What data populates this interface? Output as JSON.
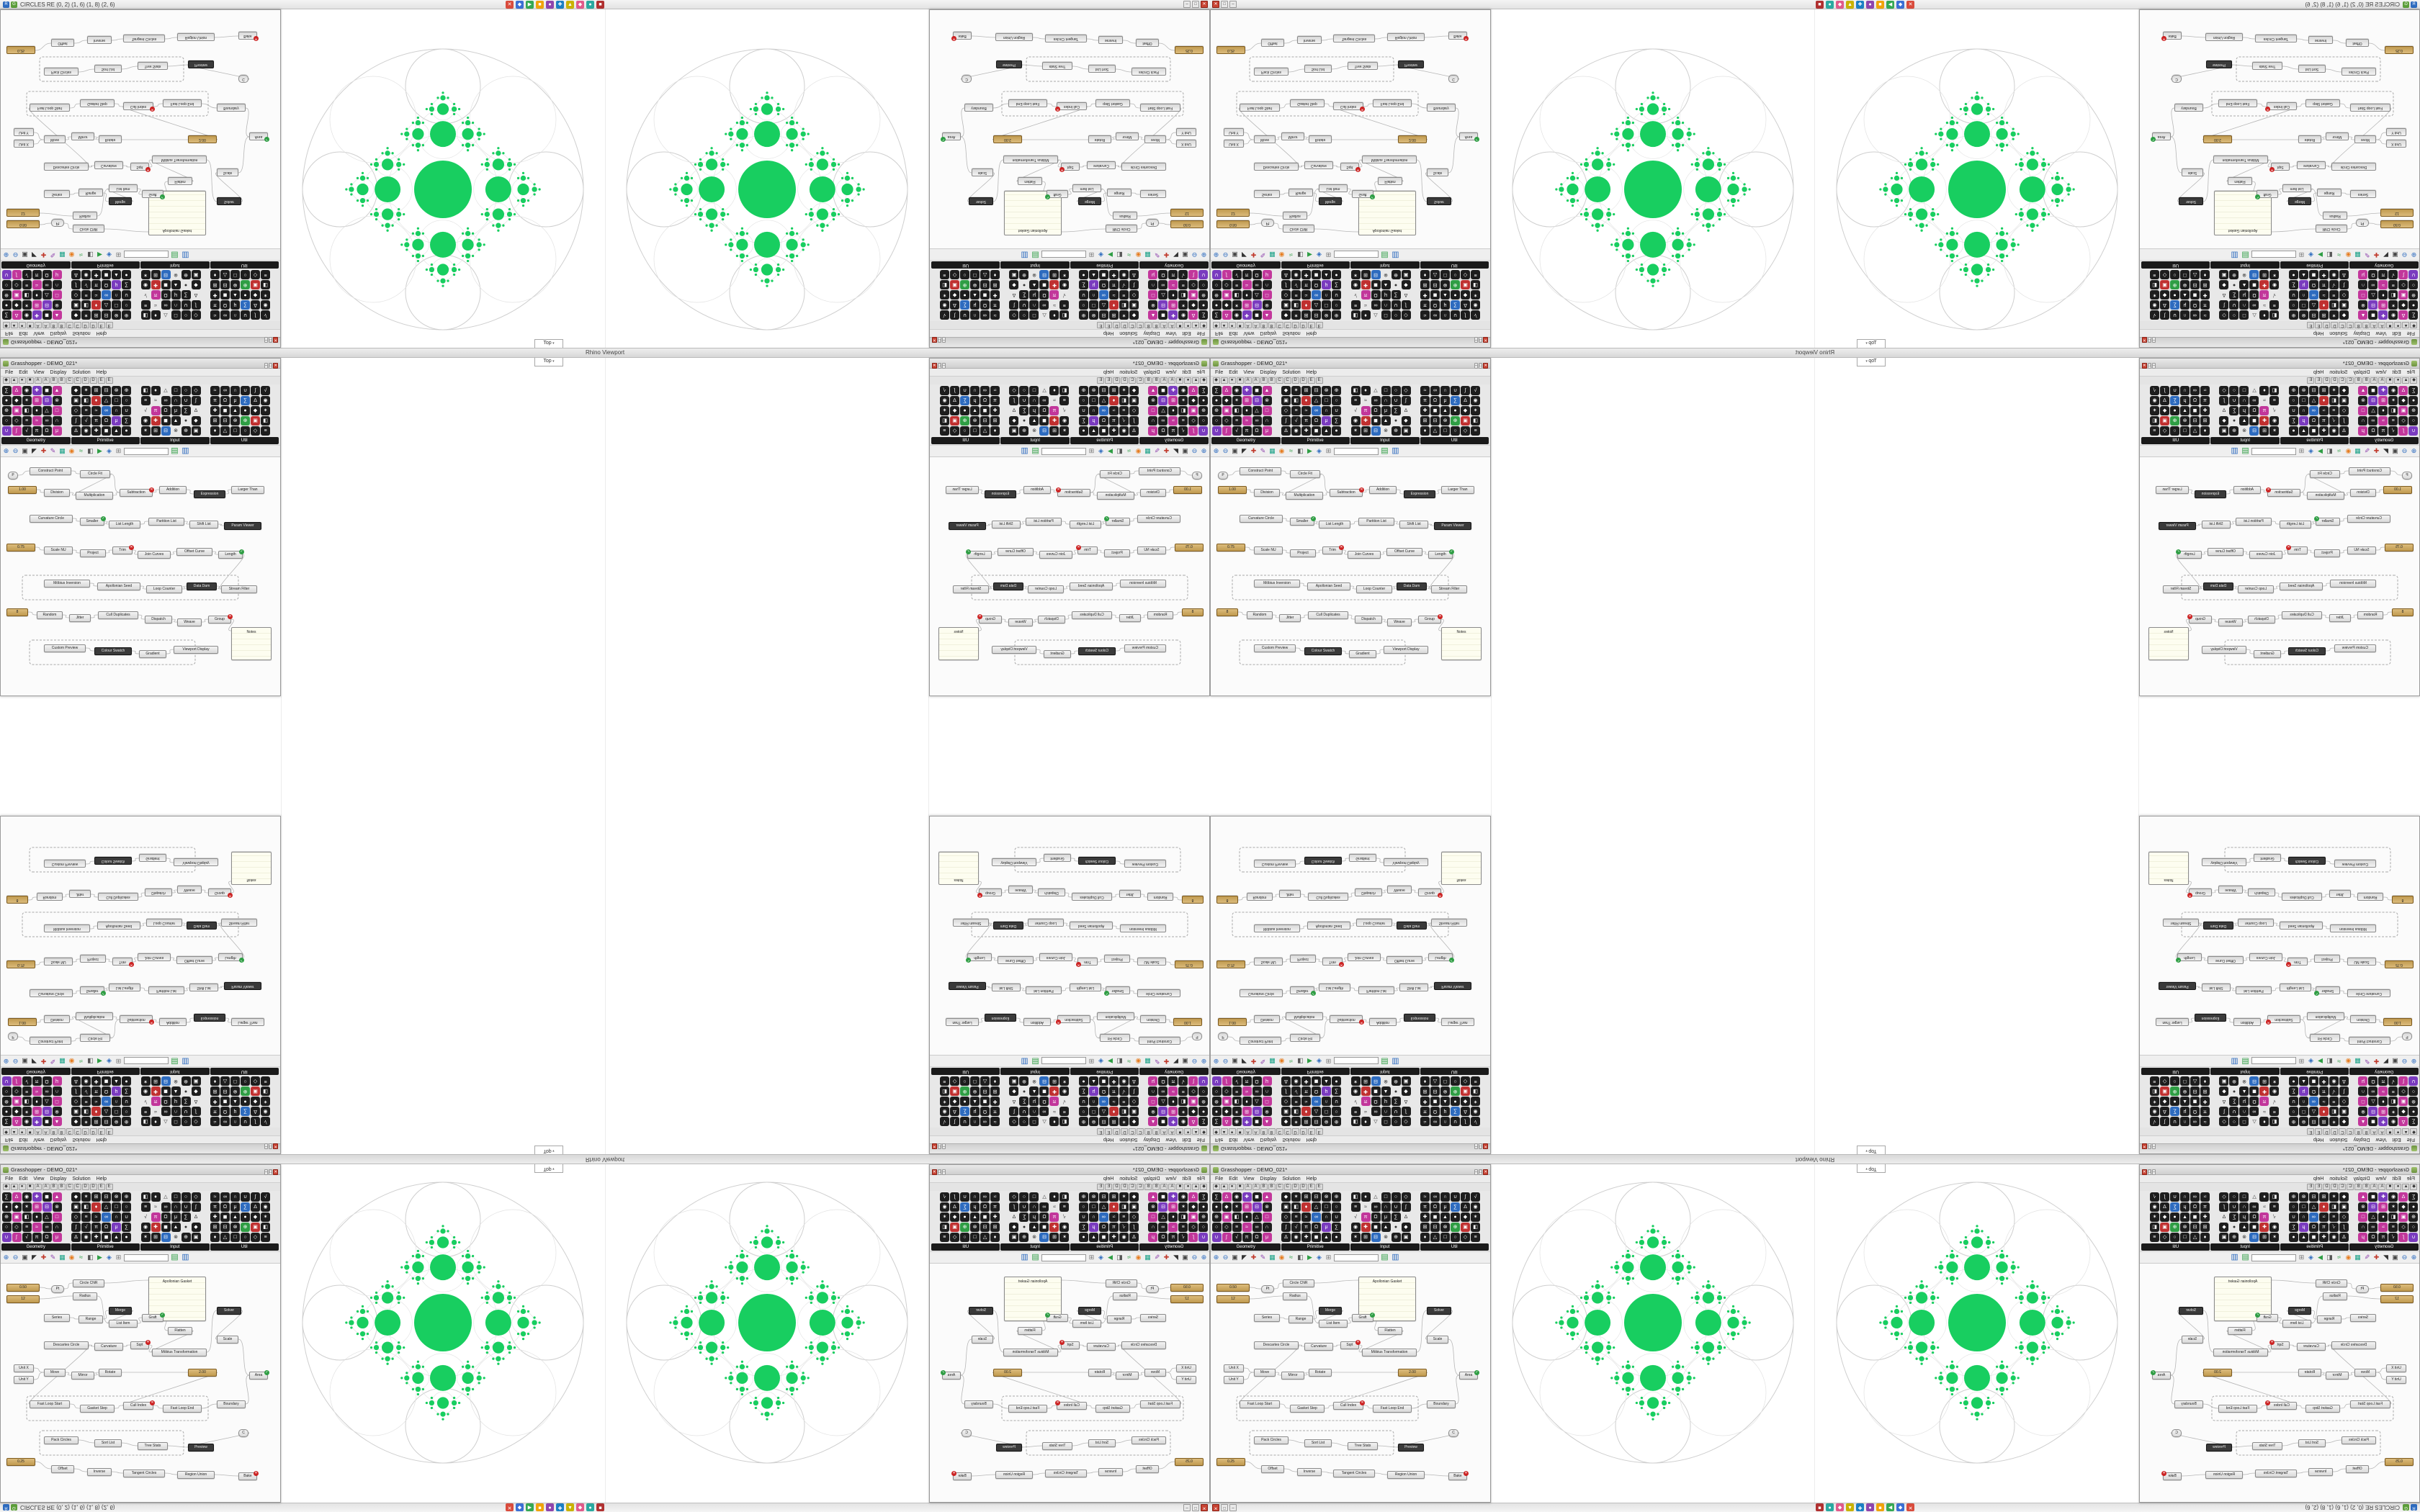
{
  "app": {
    "title": "CIRCLES RE (0, 2) (1, 6) (1, 8) (2, 6)"
  },
  "rhino": {
    "viewport_title": "Rhino Viewport",
    "viewport_tab": "Top"
  },
  "taskbar_icons": [
    {
      "n": "app-red",
      "g": "✕",
      "c": "#d94b3c"
    },
    {
      "n": "app-blue",
      "g": "◆",
      "c": "#3b6fd4"
    },
    {
      "n": "app-green",
      "g": "▶",
      "c": "#34a853"
    },
    {
      "n": "app-amber",
      "g": "■",
      "c": "#f0a30a"
    },
    {
      "n": "app-purple",
      "g": "●",
      "c": "#8e44ad"
    },
    {
      "n": "app-azure",
      "g": "✚",
      "c": "#1b7fc4"
    },
    {
      "n": "app-olive",
      "g": "▲",
      "c": "#c9b200"
    },
    {
      "n": "app-pink",
      "g": "◆",
      "c": "#e05a8a"
    },
    {
      "n": "app-teal",
      "g": "●",
      "c": "#2aa9a0"
    },
    {
      "n": "app-maroon",
      "g": "■",
      "c": "#b03030"
    }
  ],
  "gh": {
    "window_title": "Grasshopper - DEMO_021*",
    "search_value": "",
    "menus": [
      "File",
      "Edit",
      "View",
      "Display",
      "Solution",
      "Help"
    ],
    "letter_tabs": [
      "◆",
      "▲",
      "●",
      "■",
      "A",
      "A",
      "B",
      "B",
      "C",
      "C",
      "D",
      "D",
      "E",
      "E"
    ],
    "palette_groups": [
      {
        "name": "Geometry"
      },
      {
        "name": "Primitive"
      },
      {
        "name": "Input"
      },
      {
        "name": "Util"
      }
    ],
    "icon_glyphs": "∑∆◉✚◼▲●◆✶⊞⊟⊗⊕▣◧♦△□○◇≡≈∞∩∪∫√πΩμ",
    "toolbar_icons": [
      {
        "n": "zoom-in",
        "g": "⊕",
        "c": "#2d6bbf"
      },
      {
        "n": "zoom-out",
        "g": "⊖",
        "c": "#2d6bbf"
      },
      {
        "n": "zoom-extents",
        "g": "▣",
        "c": "#444444"
      },
      {
        "n": "pointer",
        "g": "◤",
        "c": "#333333"
      },
      {
        "n": "pan",
        "g": "✚",
        "c": "#c0392b"
      },
      {
        "n": "sketch",
        "g": "✎",
        "c": "#8e44ad"
      },
      {
        "n": "group",
        "g": "▦",
        "c": "#16a085"
      },
      {
        "n": "cluster",
        "g": "◉",
        "c": "#e67e22"
      },
      {
        "n": "wire-display",
        "g": "≈",
        "c": "#2f9e44"
      },
      {
        "n": "preview",
        "g": "◧",
        "c": "#555555"
      },
      {
        "n": "solver",
        "g": "▶",
        "c": "#2f9e44"
      },
      {
        "n": "camera",
        "g": "◈",
        "c": "#2d6bbf"
      },
      {
        "n": "grid",
        "g": "⊞",
        "c": "#777777"
      }
    ],
    "toolbar_right": [
      {
        "n": "export",
        "g": "▤",
        "c": "#2f9e44"
      },
      {
        "n": "publish",
        "g": "▥",
        "c": "#2d6bbf"
      }
    ],
    "graphA": {
      "nodes": [
        [
          8,
          28,
          46,
          "0.50",
          "t"
        ],
        [
          8,
          44,
          46,
          "12",
          "t"
        ],
        [
          70,
          30,
          18,
          "Pt",
          "c"
        ],
        [
          100,
          22,
          44,
          "Circle CNR",
          "n"
        ],
        [
          100,
          40,
          34,
          "Radius",
          "n"
        ],
        [
          205,
          18,
          80,
          "Apollonian Gasket",
          "p",
          62
        ],
        [
          60,
          70,
          36,
          "Series",
          "n"
        ],
        [
          108,
          72,
          34,
          "Range",
          "n"
        ],
        [
          150,
          60,
          32,
          "Merge",
          "d"
        ],
        [
          150,
          78,
          40,
          "List Item",
          "n"
        ],
        [
          196,
          70,
          30,
          "Graft",
          "g"
        ],
        [
          232,
          88,
          34,
          "Flatten",
          "n"
        ],
        [
          60,
          108,
          62,
          "Descartes Circle",
          "n"
        ],
        [
          130,
          110,
          40,
          "Curvature",
          "n"
        ],
        [
          180,
          108,
          26,
          "Sqrt",
          "e"
        ],
        [
          210,
          118,
          76,
          "Möbius Transformation",
          "n"
        ],
        [
          18,
          140,
          28,
          "Unit X",
          "n"
        ],
        [
          18,
          156,
          28,
          "Unit Y",
          "n"
        ],
        [
          60,
          146,
          30,
          "Move",
          "n"
        ],
        [
          98,
          150,
          32,
          "Mirror",
          "n"
        ],
        [
          136,
          146,
          32,
          "Rotate",
          "n"
        ],
        [
          300,
          60,
          34,
          "Solver",
          "d"
        ],
        [
          300,
          100,
          30,
          "Scale",
          "n"
        ],
        [
          260,
          146,
          40,
          "2.00",
          "t"
        ],
        [
          40,
          190,
          56,
          "Fast Loop Start",
          "n"
        ],
        [
          110,
          196,
          48,
          "Gasket Step",
          "n"
        ],
        [
          170,
          192,
          42,
          "Cull Index",
          "e"
        ],
        [
          225,
          196,
          54,
          "Fast Loop End",
          "n"
        ],
        [
          300,
          190,
          40,
          "Boundary",
          "n"
        ],
        [
          345,
          150,
          26,
          "Area",
          "g"
        ],
        [
          330,
          230,
          14,
          "C",
          "c"
        ],
        [
          60,
          240,
          48,
          "Pack Circles",
          "n"
        ],
        [
          130,
          244,
          38,
          "Sort List",
          "n"
        ],
        [
          190,
          248,
          42,
          "Tree Stats",
          "n"
        ],
        [
          260,
          250,
          36,
          "Preview",
          "d"
        ],
        [
          8,
          270,
          40,
          "0.25",
          "t"
        ],
        [
          70,
          280,
          32,
          "Offset",
          "n"
        ],
        [
          120,
          284,
          34,
          "Inverse",
          "n"
        ],
        [
          170,
          286,
          58,
          "Tangent Circles",
          "n"
        ],
        [
          245,
          288,
          52,
          "Region Union",
          "n"
        ],
        [
          330,
          290,
          26,
          "Bake",
          "e"
        ]
      ],
      "wires": [
        [
          0,
          2
        ],
        [
          1,
          4
        ],
        [
          2,
          3
        ],
        [
          3,
          5
        ],
        [
          4,
          9
        ],
        [
          6,
          7
        ],
        [
          7,
          8
        ],
        [
          8,
          9
        ],
        [
          9,
          10
        ],
        [
          10,
          11
        ],
        [
          11,
          15
        ],
        [
          12,
          13
        ],
        [
          13,
          14
        ],
        [
          14,
          15
        ],
        [
          15,
          21
        ],
        [
          16,
          18
        ],
        [
          17,
          18
        ],
        [
          18,
          19
        ],
        [
          19,
          20
        ],
        [
          20,
          23
        ],
        [
          23,
          26
        ],
        [
          24,
          25
        ],
        [
          25,
          26
        ],
        [
          26,
          27
        ],
        [
          27,
          28
        ],
        [
          28,
          29
        ],
        [
          21,
          22
        ],
        [
          22,
          29
        ],
        [
          31,
          32
        ],
        [
          32,
          33
        ],
        [
          33,
          34
        ],
        [
          35,
          36
        ],
        [
          36,
          37
        ],
        [
          37,
          38
        ],
        [
          38,
          39
        ],
        [
          39,
          40
        ],
        [
          30,
          34
        ],
        [
          12,
          24
        ]
      ],
      "groups": [
        [
          36,
          184,
          252,
          34
        ],
        [
          54,
          232,
          200,
          34
        ]
      ]
    },
    "graphB": {
      "nodes": [
        [
          10,
          20,
          14,
          "P",
          "c"
        ],
        [
          40,
          14,
          58,
          "Construct Point",
          "n"
        ],
        [
          110,
          18,
          42,
          "Circle Fit",
          "n"
        ],
        [
          10,
          40,
          40,
          "1.00",
          "t"
        ],
        [
          60,
          44,
          36,
          "Division",
          "n"
        ],
        [
          104,
          48,
          52,
          "Multiplication",
          "n"
        ],
        [
          165,
          44,
          46,
          "Subtraction",
          "e"
        ],
        [
          220,
          40,
          38,
          "Addition",
          "n"
        ],
        [
          268,
          46,
          44,
          "Expression",
          "d"
        ],
        [
          320,
          40,
          46,
          "Larger Than",
          "n"
        ],
        [
          40,
          80,
          60,
          "Curvature Circle",
          "n"
        ],
        [
          110,
          84,
          34,
          "Smaller",
          "g"
        ],
        [
          150,
          88,
          44,
          "List Length",
          "n"
        ],
        [
          205,
          84,
          50,
          "Partition List",
          "n"
        ],
        [
          262,
          88,
          40,
          "Shift List",
          "n"
        ],
        [
          310,
          90,
          52,
          "Param Viewer",
          "d"
        ],
        [
          8,
          120,
          40,
          "0.75",
          "t"
        ],
        [
          60,
          124,
          40,
          "Scale NU",
          "n"
        ],
        [
          110,
          128,
          36,
          "Project",
          "n"
        ],
        [
          155,
          124,
          28,
          "Trim",
          "e"
        ],
        [
          190,
          130,
          46,
          "Join Curves",
          "n"
        ],
        [
          244,
          126,
          50,
          "Offset Curve",
          "n"
        ],
        [
          302,
          130,
          34,
          "Length",
          "g"
        ],
        [
          60,
          170,
          64,
          "Möbius Inversion",
          "n"
        ],
        [
          134,
          174,
          60,
          "Apollonian Seed",
          "n"
        ],
        [
          202,
          178,
          50,
          "Loop Counter",
          "n"
        ],
        [
          258,
          174,
          42,
          "Data Dam",
          "d"
        ],
        [
          306,
          178,
          50,
          "Stream Filter",
          "n"
        ],
        [
          8,
          210,
          30,
          "8",
          "t"
        ],
        [
          50,
          214,
          36,
          "Random",
          "n"
        ],
        [
          95,
          218,
          30,
          "Jitter",
          "n"
        ],
        [
          135,
          214,
          56,
          "Cull Duplicates",
          "n"
        ],
        [
          200,
          220,
          38,
          "Dispatch",
          "n"
        ],
        [
          245,
          224,
          34,
          "Weave",
          "n"
        ],
        [
          288,
          220,
          32,
          "Group",
          "e"
        ],
        [
          320,
          236,
          56,
          "Notes",
          "p",
          46
        ],
        [
          60,
          260,
          58,
          "Custom Preview",
          "n"
        ],
        [
          130,
          264,
          52,
          "Colour Swatch",
          "d"
        ],
        [
          192,
          268,
          38,
          "Gradient",
          "n"
        ],
        [
          240,
          262,
          62,
          "Viewport Display",
          "n"
        ]
      ],
      "wires": [
        [
          0,
          1
        ],
        [
          1,
          2
        ],
        [
          2,
          5
        ],
        [
          3,
          4
        ],
        [
          4,
          5
        ],
        [
          5,
          6
        ],
        [
          6,
          7
        ],
        [
          7,
          8
        ],
        [
          8,
          9
        ],
        [
          10,
          11
        ],
        [
          11,
          12
        ],
        [
          12,
          13
        ],
        [
          13,
          14
        ],
        [
          14,
          15
        ],
        [
          16,
          17
        ],
        [
          17,
          18
        ],
        [
          18,
          19
        ],
        [
          19,
          20
        ],
        [
          20,
          21
        ],
        [
          21,
          22
        ],
        [
          23,
          24
        ],
        [
          24,
          25
        ],
        [
          25,
          26
        ],
        [
          26,
          27
        ],
        [
          28,
          29
        ],
        [
          29,
          30
        ],
        [
          30,
          31
        ],
        [
          31,
          32
        ],
        [
          32,
          33
        ],
        [
          33,
          34
        ],
        [
          36,
          37
        ],
        [
          37,
          38
        ],
        [
          38,
          39
        ],
        [
          2,
          6
        ],
        [
          22,
          27
        ],
        [
          34,
          35
        ]
      ],
      "groups": [
        [
          30,
          164,
          300,
          34
        ],
        [
          40,
          254,
          230,
          34
        ]
      ]
    }
  },
  "colors": {
    "palette_icons": {
      "dark": "#1d1d1d",
      "pink": "#c2379b",
      "purple": "#7a3bbf",
      "red": "#c03030",
      "blue": "#2d6bbf",
      "light": "#e8e8e8",
      "yellow": "#d8b800",
      "green": "#2f9e44"
    }
  },
  "fractal": {
    "green": "#18ce60",
    "faint": "#cfcfcf",
    "faint2": "#e2e2e2",
    "outer_r": 195,
    "cap_r": 52,
    "cap_d": 143,
    "root_r": 40,
    "ratio": 0.45,
    "depth": 4
  }
}
